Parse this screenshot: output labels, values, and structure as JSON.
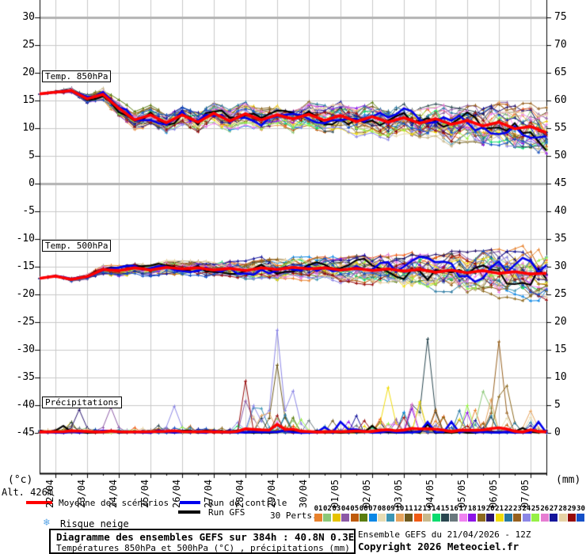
{
  "meta": {
    "alt_label": "Alt. 426m",
    "left_unit": "(°c)",
    "right_unit": "(mm)",
    "risk_label": "Risque neige",
    "snowflake_icon": "❄",
    "title_line1": "Diagramme des ensembles GEFS sur 384h : 40.8N 0.3E",
    "title_line2": "Températures 850hPa et 500hPa (°C) , précipitations (mm)",
    "run_info": "Ensemble GEFS du 21/04/2026 - 12Z",
    "copyright": "Copyright 2026 Meteociel.fr"
  },
  "legend": {
    "mean_label": "Moyenne des scénarios",
    "control_label": "Run de contrôle",
    "gfs_label": "Run GFS",
    "perts_label": "30 Perts.",
    "mean_color": "#FF0000",
    "control_color": "#0000EE",
    "gfs_color": "#000000",
    "snow_color": "#5AA5E6"
  },
  "chart_data": {
    "type": "line",
    "title": "Diagramme des ensembles GEFS sur 384h : 40.8N 0.3E",
    "x_dates": [
      "22/04",
      "23/04",
      "24/04",
      "25/04",
      "26/04",
      "27/04",
      "28/04",
      "29/04",
      "30/04",
      "01/05",
      "02/05",
      "03/05",
      "04/05",
      "05/05",
      "06/05",
      "07/05"
    ],
    "left_axis": {
      "unit": "°C",
      "ticks": [
        30,
        25,
        20,
        15,
        10,
        5,
        0,
        -5,
        -10,
        -15,
        -20,
        -25,
        -30,
        -35,
        -40,
        -45
      ],
      "emphasized": [
        30,
        0
      ]
    },
    "right_axis": {
      "unit": "mm",
      "ticks": [
        75,
        70,
        65,
        60,
        55,
        50,
        45,
        40,
        35,
        30,
        25,
        20,
        15,
        10,
        5,
        0
      ]
    },
    "grid": true,
    "grid_color": "#C9C9C9",
    "grid_emph_color": "#B2B2B2",
    "palette": [
      "#E8822D",
      "#8CC878",
      "#E6C300",
      "#8C5AA5",
      "#BE5A0A",
      "#5A7D0F",
      "#0A87E6",
      "#E6DCB4",
      "#3C96B4",
      "#E6A55F",
      "#6E5A1E",
      "#F05A14",
      "#C8B98C",
      "#0ADC6E",
      "#28464F",
      "#69787D",
      "#F082F0",
      "#8C14E6",
      "#8C691E",
      "#28146E",
      "#F0DC0A",
      "#2878A0",
      "#96601E",
      "#8C87E6",
      "#96F046",
      "#E67DD2",
      "#14149B",
      "#E6D2A5",
      "#960A0A",
      "#1450C8"
    ],
    "panels": [
      {
        "id": "t850",
        "label": "Temp. 850hPa",
        "kind": "temperature",
        "mean12h": [
          16.2,
          16.5,
          16.8,
          15.3,
          16.1,
          13.6,
          11.5,
          12.4,
          11.0,
          12.4,
          11.1,
          12.7,
          11.3,
          12.6,
          11.5,
          12.4,
          11.7,
          12.5,
          11.4,
          12.3,
          11.2,
          12.1,
          11.1,
          11.9,
          10.9,
          11.7,
          10.7,
          11.4,
          10.4,
          11.1,
          9.9,
          10.3,
          9.2
        ],
        "spread12h": [
          0.3,
          0.5,
          0.8,
          1.0,
          1.2,
          1.5,
          1.7,
          1.8,
          1.9,
          2.0,
          2.1,
          2.1,
          2.2,
          2.2,
          2.3,
          2.3,
          2.4,
          2.5,
          2.6,
          2.7,
          2.8,
          2.9,
          3.0,
          3.1,
          3.3,
          3.4,
          3.6,
          3.7,
          3.9,
          4.0,
          4.2,
          4.3,
          4.5
        ]
      },
      {
        "id": "t500",
        "label": "Temp. 500hPa",
        "kind": "temperature",
        "mean12h": [
          -17.1,
          -16.7,
          -17.3,
          -16.8,
          -15.5,
          -15.7,
          -15.2,
          -15.6,
          -15.1,
          -15.4,
          -15.2,
          -15.6,
          -15.3,
          -15.7,
          -15.2,
          -15.5,
          -15.1,
          -15.4,
          -15.2,
          -15.6,
          -15.3,
          -15.7,
          -15.4,
          -15.8,
          -15.5,
          -16.0,
          -15.6,
          -16.1,
          -15.7,
          -16.2,
          -15.9,
          -16.3,
          -16.2
        ],
        "spread12h": [
          0.25,
          0.35,
          0.5,
          0.6,
          0.8,
          0.9,
          1.0,
          1.1,
          1.2,
          1.3,
          1.4,
          1.5,
          1.6,
          1.7,
          1.8,
          1.9,
          2.0,
          2.1,
          2.3,
          2.4,
          2.6,
          2.7,
          2.9,
          3.1,
          3.3,
          3.5,
          3.7,
          3.9,
          4.1,
          4.3,
          4.6,
          4.8,
          5.0
        ]
      },
      {
        "id": "precip",
        "label": "Précipitations",
        "kind": "precipitation",
        "baseline_mm": 0,
        "envelope12h": [
          1.5,
          0.6,
          4.5,
          1.2,
          0.6,
          0.6,
          1.2,
          3.0,
          2.2,
          4.2,
          1.2,
          2.2,
          5.0,
          19,
          9,
          7,
          6,
          5,
          5,
          4.5,
          6,
          3.5,
          8,
          9,
          12,
          8,
          6,
          10,
          8,
          17,
          6.5,
          8,
          4
        ],
        "featured_spikes": [
          {
            "member": 24,
            "t6h": 30,
            "mm": 18.6
          },
          {
            "member": 11,
            "t6h": 30,
            "mm": 12.3
          },
          {
            "member": 24,
            "t6h": 32,
            "mm": 7.6
          },
          {
            "member": 9,
            "t6h": 28,
            "mm": 4.4
          },
          {
            "member": 20,
            "t6h": 5,
            "mm": 4.2
          },
          {
            "member": 4,
            "t6h": 9,
            "mm": 4.6
          },
          {
            "member": 24,
            "t6h": 17,
            "mm": 4.8
          },
          {
            "member": 15,
            "t6h": 49,
            "mm": 17.0
          },
          {
            "member": 21,
            "t6h": 44,
            "mm": 8.2
          },
          {
            "member": 23,
            "t6h": 58,
            "mm": 16.5
          },
          {
            "member": 19,
            "t6h": 59,
            "mm": 8.5
          },
          {
            "member": 2,
            "t6h": 56,
            "mm": 7.5
          },
          {
            "member": 10,
            "t6h": 62,
            "mm": 4.0
          }
        ]
      }
    ]
  }
}
